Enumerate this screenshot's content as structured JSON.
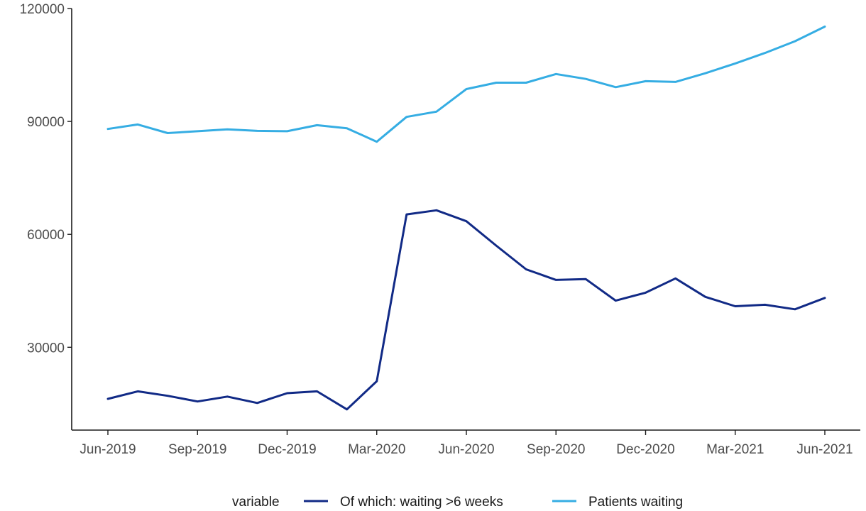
{
  "chart_data": {
    "type": "line",
    "x": [
      "2019-06",
      "2019-07",
      "2019-08",
      "2019-09",
      "2019-10",
      "2019-11",
      "2019-12",
      "2020-01",
      "2020-02",
      "2020-03",
      "2020-04",
      "2020-05",
      "2020-06",
      "2020-07",
      "2020-08",
      "2020-09",
      "2020-10",
      "2020-11",
      "2020-12",
      "2021-01",
      "2021-02",
      "2021-03",
      "2021-04",
      "2021-05",
      "2021-06"
    ],
    "x_tick_labels": [
      "Jun-2019",
      "Sep-2019",
      "Dec-2019",
      "Mar-2020",
      "Jun-2020",
      "Sep-2020",
      "Dec-2020",
      "Mar-2021",
      "Jun-2021"
    ],
    "x_tick_positions": [
      "2019-06",
      "2019-09",
      "2019-12",
      "2020-03",
      "2020-06",
      "2020-09",
      "2020-12",
      "2021-03",
      "2021-06"
    ],
    "ylim": [
      8000,
      120000
    ],
    "y_ticks": [
      30000,
      60000,
      90000,
      120000
    ],
    "y_tick_labels": [
      "30000",
      "60000",
      "90000",
      "120000"
    ],
    "grid": false,
    "legend": {
      "position": "bottom",
      "title": "variable"
    },
    "series": [
      {
        "name": "Of which: waiting >6 weeks",
        "color": "#112a86",
        "values": [
          16300,
          18300,
          17100,
          15600,
          16900,
          15200,
          17800,
          18300,
          13500,
          21000,
          65300,
          66400,
          63500,
          57000,
          50700,
          47900,
          48100,
          42400,
          44500,
          48300,
          43400,
          40900,
          41300,
          40100,
          43100
        ]
      },
      {
        "name": "Patients waiting",
        "color": "#35ade3",
        "values": [
          88000,
          89200,
          86900,
          87400,
          87900,
          87500,
          87400,
          89000,
          88200,
          84600,
          91200,
          92600,
          98600,
          100300,
          100300,
          102600,
          101300,
          99100,
          100700,
          100500,
          102800,
          105400,
          108200,
          111300,
          115200
        ]
      }
    ]
  }
}
